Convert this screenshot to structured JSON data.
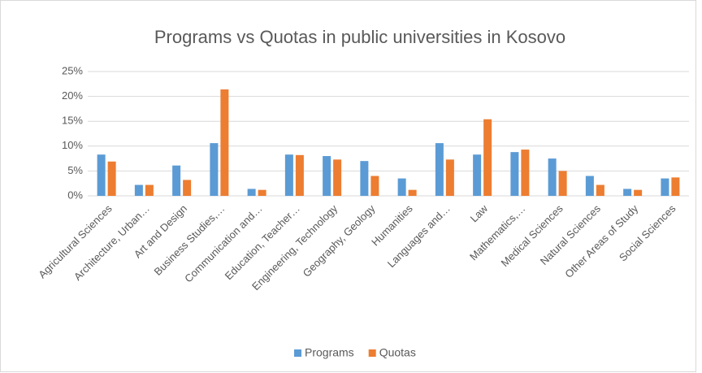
{
  "chart_data": {
    "type": "bar",
    "title": "Programs vs Quotas in public universities in Kosovo",
    "categories": [
      "Agricultural Sciences",
      "Architecture, Urban…",
      "Art and Design",
      "Business Studies,…",
      "Communication and…",
      "Education, Teacher…",
      "Engineering, Technology",
      "Geography, Geology",
      "Humanities",
      "Languages and…",
      "Law",
      "Mathematics,…",
      "Medical Sciences",
      "Natural Sciences",
      "Other Areas of Study",
      "Social Sciences"
    ],
    "series": [
      {
        "name": "Programs",
        "color": "#5b9bd5",
        "values": [
          8.3,
          2.2,
          6.1,
          10.6,
          1.4,
          8.3,
          8.0,
          7.0,
          3.5,
          10.6,
          8.3,
          8.8,
          7.5,
          4.0,
          1.4,
          3.5
        ]
      },
      {
        "name": "Quotas",
        "color": "#ed7d31",
        "values": [
          6.9,
          2.2,
          3.2,
          21.4,
          1.2,
          8.2,
          7.3,
          4.0,
          1.2,
          7.3,
          15.4,
          9.3,
          5.0,
          2.2,
          1.2,
          3.7
        ]
      }
    ],
    "ylim": [
      0,
      25
    ],
    "yticks": [
      {
        "value": 0,
        "label": "0%"
      },
      {
        "value": 5,
        "label": "5%"
      },
      {
        "value": 10,
        "label": "10%"
      },
      {
        "value": 15,
        "label": "15%"
      },
      {
        "value": 20,
        "label": "20%"
      },
      {
        "value": 25,
        "label": "25%"
      }
    ],
    "grid": true,
    "legend": "bottom"
  }
}
